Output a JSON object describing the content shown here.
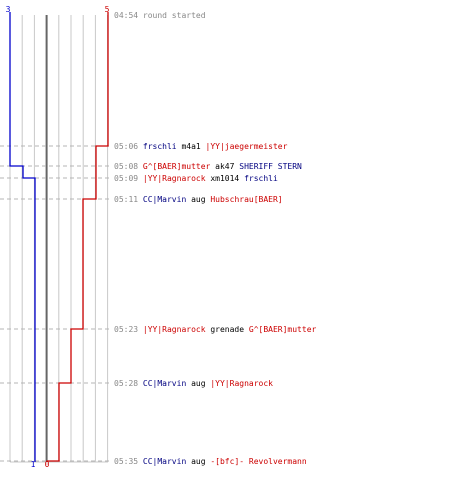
{
  "chart_data": {
    "type": "step-timeline",
    "teams": [
      {
        "name": "blue",
        "color": "#0000cc",
        "start_score": 3,
        "end_score": 1
      },
      {
        "name": "red",
        "color": "#cc0000",
        "start_score": 5,
        "end_score": 0
      }
    ],
    "events": [
      {
        "time": "04:54",
        "parts": [
          {
            "text": "round started",
            "color": "#888888"
          }
        ]
      },
      {
        "time": "05:06",
        "parts": [
          {
            "text": "frschli",
            "color": "#000080"
          },
          {
            "text": " m4a1 ",
            "color": "#000000"
          },
          {
            "text": "|YY|jaegermeister",
            "color": "#cc0000"
          }
        ]
      },
      {
        "time": "05:08",
        "parts": [
          {
            "text": "G^[BAER]mutter",
            "color": "#cc0000"
          },
          {
            "text": " ak47 ",
            "color": "#000000"
          },
          {
            "text": "SHERIFF STERN",
            "color": "#000080"
          }
        ]
      },
      {
        "time": "05:09",
        "parts": [
          {
            "text": "|YY|Ragnarock",
            "color": "#cc0000"
          },
          {
            "text": " xm1014 ",
            "color": "#000000"
          },
          {
            "text": "frschli",
            "color": "#000080"
          }
        ]
      },
      {
        "time": "05:11",
        "parts": [
          {
            "text": "CC|Marvin",
            "color": "#000080"
          },
          {
            "text": " aug ",
            "color": "#000000"
          },
          {
            "text": "Hubschrau[BAER]",
            "color": "#cc0000"
          }
        ]
      },
      {
        "time": "05:23",
        "parts": [
          {
            "text": "|YY|Ragnarock",
            "color": "#cc0000"
          },
          {
            "text": " grenade ",
            "color": "#000000"
          },
          {
            "text": "G^[BAER]mutter",
            "color": "#cc0000"
          }
        ]
      },
      {
        "time": "05:28",
        "parts": [
          {
            "text": "CC|Marvin",
            "color": "#000080"
          },
          {
            "text": " aug ",
            "color": "#000000"
          },
          {
            "text": "|YY|Ragnarock",
            "color": "#cc0000"
          }
        ]
      },
      {
        "time": "05:35",
        "parts": [
          {
            "text": "CC|Marvin",
            "color": "#000080"
          },
          {
            "text": " aug ",
            "color": "#000000"
          },
          {
            "text": "-[bfc]- Revolvermann",
            "color": "#cc0000"
          }
        ]
      }
    ]
  }
}
